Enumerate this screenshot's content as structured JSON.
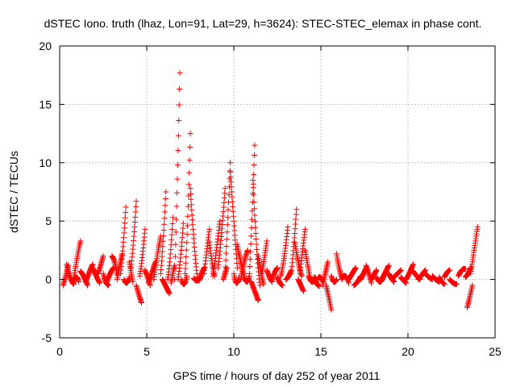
{
  "chart_data": {
    "type": "scatter",
    "title": "dSTEC Iono. truth (lhaz, Lon=91, Lat=29, h=3624): STEC-STEC_elemax in phase cont.",
    "xlabel": "GPS time / hours of day 252 of year 2011",
    "ylabel": "dSTEC  / TECUs",
    "xlim": [
      0,
      25
    ],
    "ylim": [
      -5,
      20
    ],
    "x_ticks": [
      0,
      5,
      10,
      15,
      20,
      25
    ],
    "y_ticks": [
      -5,
      0,
      5,
      10,
      15,
      20
    ],
    "x_tick_labels": [
      "0",
      "5",
      "10",
      "15",
      "20",
      "25"
    ],
    "y_tick_labels": [
      "-5",
      "0",
      "5",
      "10",
      "15",
      "20"
    ],
    "grid": true,
    "marker": "plus",
    "series": [
      {
        "color": "#ff0000",
        "arcs": [
          {
            "start": 0.2,
            "end": 0.5,
            "values": [
              -0.5,
              0.3,
              1.2
            ]
          },
          {
            "start": 0.4,
            "end": 0.8,
            "values": [
              1.3,
              0.2,
              -0.4
            ]
          },
          {
            "start": 0.8,
            "end": 1.2,
            "values": [
              0,
              1.8,
              3.3
            ]
          },
          {
            "start": 0.8,
            "end": 1.1,
            "values": [
              -0.3,
              0.2,
              -0.2
            ]
          },
          {
            "start": 1.2,
            "end": 1.6,
            "values": [
              0.7,
              0.2,
              -0.5
            ]
          },
          {
            "start": 1.5,
            "end": 1.9,
            "values": [
              -0.2,
              0.6,
              1.3
            ]
          },
          {
            "start": 1.9,
            "end": 2.3,
            "values": [
              1.0,
              0.3,
              -0.3
            ]
          },
          {
            "start": 2.2,
            "end": 2.5,
            "values": [
              0.5,
              1.2,
              2.0
            ]
          },
          {
            "start": 2.5,
            "end": 2.8,
            "values": [
              0.5,
              -0.2,
              -0.5
            ]
          },
          {
            "start": 2.7,
            "end": 3.1,
            "values": [
              -0.3,
              0.5,
              1.0
            ]
          },
          {
            "start": 3.0,
            "end": 3.3,
            "values": [
              2.0,
              1.5,
              0.4
            ]
          },
          {
            "start": 3.3,
            "end": 3.6,
            "values": [
              0,
              1.2,
              2.2
            ]
          },
          {
            "start": 3.5,
            "end": 3.8,
            "values": [
              0.5,
              3.0,
              6.2
            ]
          },
          {
            "start": 3.7,
            "end": 4.0,
            "values": [
              0,
              -0.3,
              0.2
            ]
          },
          {
            "start": 4.0,
            "end": 4.2,
            "values": [
              1.5,
              0.6,
              -0.2
            ]
          },
          {
            "start": 4.1,
            "end": 4.4,
            "values": [
              1.0,
              3.5,
              6.7
            ]
          },
          {
            "start": 4.4,
            "end": 4.7,
            "values": [
              -0.5,
              -1.3,
              -2.0
            ]
          },
          {
            "start": 4.6,
            "end": 4.9,
            "values": [
              0.3,
              2.0,
              4.3
            ]
          },
          {
            "start": 4.9,
            "end": 5.2,
            "values": [
              0.8,
              0.2,
              -0.5
            ]
          },
          {
            "start": 5.1,
            "end": 5.5,
            "values": [
              -0.3,
              0.6,
              1.5
            ]
          },
          {
            "start": 5.4,
            "end": 5.8,
            "values": [
              0,
              2.0,
              3.7
            ]
          },
          {
            "start": 5.8,
            "end": 6.1,
            "values": [
              0.5,
              3.5,
              7.5
            ]
          },
          {
            "start": 5.9,
            "end": 6.3,
            "values": [
              0,
              -0.6,
              -1.2
            ]
          },
          {
            "start": 6.2,
            "end": 6.5,
            "values": [
              0,
              2.0,
              5.3
            ]
          },
          {
            "start": 6.4,
            "end": 6.6,
            "values": [
              -0.3,
              0.5,
              1.2
            ]
          },
          {
            "start": 6.6,
            "end": 6.9,
            "values": [
              0,
              8.0,
              17.7
            ]
          },
          {
            "start": 6.8,
            "end": 7.1,
            "values": [
              0,
              2.0,
              4.8
            ]
          },
          {
            "start": 7.0,
            "end": 7.3,
            "values": [
              0,
              -0.4,
              0.3
            ]
          },
          {
            "start": 7.2,
            "end": 7.5,
            "values": [
              0.5,
              5.0,
              12.5
            ]
          },
          {
            "start": 7.5,
            "end": 7.9,
            "values": [
              7.8,
              3.5,
              0.2
            ]
          },
          {
            "start": 7.7,
            "end": 8.1,
            "values": [
              0.1,
              -0.1,
              0.2
            ]
          },
          {
            "start": 8.0,
            "end": 8.3,
            "values": [
              -0.1,
              0.5,
              1.0
            ]
          },
          {
            "start": 8.3,
            "end": 8.6,
            "values": [
              0.5,
              2.5,
              4.3
            ]
          },
          {
            "start": 8.6,
            "end": 8.9,
            "values": [
              3.2,
              1.5,
              0.3
            ]
          },
          {
            "start": 8.8,
            "end": 9.2,
            "values": [
              0.3,
              2.5,
              5.0
            ]
          },
          {
            "start": 9.1,
            "end": 9.5,
            "values": [
              1.0,
              4.0,
              7.8
            ]
          },
          {
            "start": 9.4,
            "end": 9.6,
            "values": [
              0,
              0.5,
              1.0
            ]
          },
          {
            "start": 9.5,
            "end": 9.8,
            "values": [
              0.5,
              5.0,
              10.0
            ]
          },
          {
            "start": 9.8,
            "end": 10.2,
            "values": [
              9.2,
              5.0,
              1.0
            ]
          },
          {
            "start": 10.0,
            "end": 10.3,
            "values": [
              0.5,
              -0.3,
              0.2
            ]
          },
          {
            "start": 10.2,
            "end": 10.6,
            "values": [
              3.0,
              1.5,
              0.2
            ]
          },
          {
            "start": 10.4,
            "end": 10.8,
            "values": [
              0,
              1.5,
              2.5
            ]
          },
          {
            "start": 10.6,
            "end": 10.9,
            "values": [
              0.2,
              -0.2,
              0.3
            ]
          },
          {
            "start": 10.9,
            "end": 11.2,
            "values": [
              0.5,
              5.5,
              11.5
            ]
          },
          {
            "start": 11.1,
            "end": 11.5,
            "values": [
              8.5,
              3.0,
              -0.5
            ]
          },
          {
            "start": 11.0,
            "end": 11.4,
            "values": [
              -0.2,
              -1.0,
              -1.8
            ]
          },
          {
            "start": 11.4,
            "end": 11.7,
            "values": [
              2.0,
              0.7,
              -0.4
            ]
          },
          {
            "start": 11.6,
            "end": 11.9,
            "values": [
              0.5,
              1.8,
              3.3
            ]
          },
          {
            "start": 11.9,
            "end": 12.2,
            "values": [
              0.8,
              0.2,
              -0.2
            ]
          },
          {
            "start": 12.2,
            "end": 12.5,
            "values": [
              0,
              0.6,
              1.0
            ]
          },
          {
            "start": 12.5,
            "end": 12.8,
            "values": [
              0.2,
              -0.3,
              -0.5
            ]
          },
          {
            "start": 12.7,
            "end": 13.1,
            "values": [
              0.3,
              2.0,
              4.5
            ]
          },
          {
            "start": 13.0,
            "end": 13.3,
            "values": [
              0,
              0.3,
              0.8
            ]
          },
          {
            "start": 13.3,
            "end": 13.6,
            "values": [
              0.5,
              3.0,
              6.0
            ]
          },
          {
            "start": 13.5,
            "end": 13.9,
            "values": [
              3.2,
              1.5,
              0.3
            ]
          },
          {
            "start": 13.7,
            "end": 14.0,
            "values": [
              0,
              -0.5,
              -1.0
            ]
          },
          {
            "start": 13.8,
            "end": 14.1,
            "values": [
              0.5,
              2.5,
              4.3
            ]
          },
          {
            "start": 14.1,
            "end": 14.4,
            "values": [
              2.5,
              1.2,
              0
            ]
          },
          {
            "start": 14.3,
            "end": 14.7,
            "values": [
              0.3,
              -0.2,
              0.2
            ]
          },
          {
            "start": 14.6,
            "end": 14.9,
            "values": [
              0.2,
              -0.3,
              -0.6
            ]
          },
          {
            "start": 14.8,
            "end": 15.1,
            "values": [
              0,
              0.2,
              -0.2
            ]
          },
          {
            "start": 15.1,
            "end": 15.4,
            "values": [
              -0.5,
              0.5,
              1.5
            ]
          },
          {
            "start": 15.3,
            "end": 15.6,
            "values": [
              -0.5,
              -1.5,
              -2.6
            ]
          },
          {
            "start": 15.6,
            "end": 15.9,
            "values": [
              0.3,
              -0.2,
              0
            ]
          },
          {
            "start": 15.9,
            "end": 16.2,
            "values": [
              2.2,
              1.0,
              0.2
            ]
          },
          {
            "start": 16.2,
            "end": 16.6,
            "values": [
              0,
              0.3,
              -0.3
            ]
          },
          {
            "start": 16.6,
            "end": 17.0,
            "values": [
              0,
              0.5,
              1.0
            ]
          },
          {
            "start": 16.9,
            "end": 17.3,
            "values": [
              -0.5,
              -0.2,
              0.3
            ]
          },
          {
            "start": 17.3,
            "end": 17.6,
            "values": [
              0,
              0.5,
              1.0
            ]
          },
          {
            "start": 17.6,
            "end": 17.9,
            "values": [
              1.2,
              0.5,
              -0.3
            ]
          },
          {
            "start": 17.9,
            "end": 18.2,
            "values": [
              0,
              0.4,
              0.8
            ]
          },
          {
            "start": 18.2,
            "end": 18.6,
            "values": [
              0.2,
              -0.2,
              0.3
            ]
          },
          {
            "start": 18.5,
            "end": 18.9,
            "values": [
              0,
              0.6,
              1.2
            ]
          },
          {
            "start": 18.9,
            "end": 19.2,
            "values": [
              0.5,
              0.1,
              -0.2
            ]
          },
          {
            "start": 19.2,
            "end": 19.6,
            "values": [
              0.2,
              0.5,
              0.8
            ]
          },
          {
            "start": 19.6,
            "end": 19.9,
            "values": [
              0.2,
              -0.1,
              -0.3
            ]
          },
          {
            "start": 19.9,
            "end": 20.3,
            "values": [
              0,
              0.6,
              1.3
            ]
          },
          {
            "start": 20.3,
            "end": 20.7,
            "values": [
              0.7,
              0.3,
              0
            ]
          },
          {
            "start": 20.6,
            "end": 21.0,
            "values": [
              0,
              0.4,
              0.8
            ]
          },
          {
            "start": 21.0,
            "end": 21.4,
            "values": [
              0.5,
              0.2,
              0
            ]
          },
          {
            "start": 21.4,
            "end": 21.8,
            "values": [
              0.3,
              0,
              -0.2
            ]
          },
          {
            "start": 21.8,
            "end": 22.1,
            "values": [
              0.2,
              -0.2,
              -0.4
            ]
          },
          {
            "start": 22.1,
            "end": 22.4,
            "values": [
              0.2,
              0.6,
              0.8
            ]
          },
          {
            "start": 22.4,
            "end": 22.8,
            "values": [
              0,
              -0.3,
              -0.4
            ]
          },
          {
            "start": 22.9,
            "end": 23.3,
            "values": [
              0.3,
              0.8,
              0.9
            ]
          },
          {
            "start": 23.3,
            "end": 23.6,
            "values": [
              0.2,
              0.5,
              1.0
            ]
          },
          {
            "start": 23.4,
            "end": 23.7,
            "values": [
              -2.4,
              -1.5,
              -0.5
            ]
          },
          {
            "start": 23.6,
            "end": 24.0,
            "values": [
              0.5,
              2.5,
              4.5
            ]
          }
        ]
      }
    ]
  }
}
